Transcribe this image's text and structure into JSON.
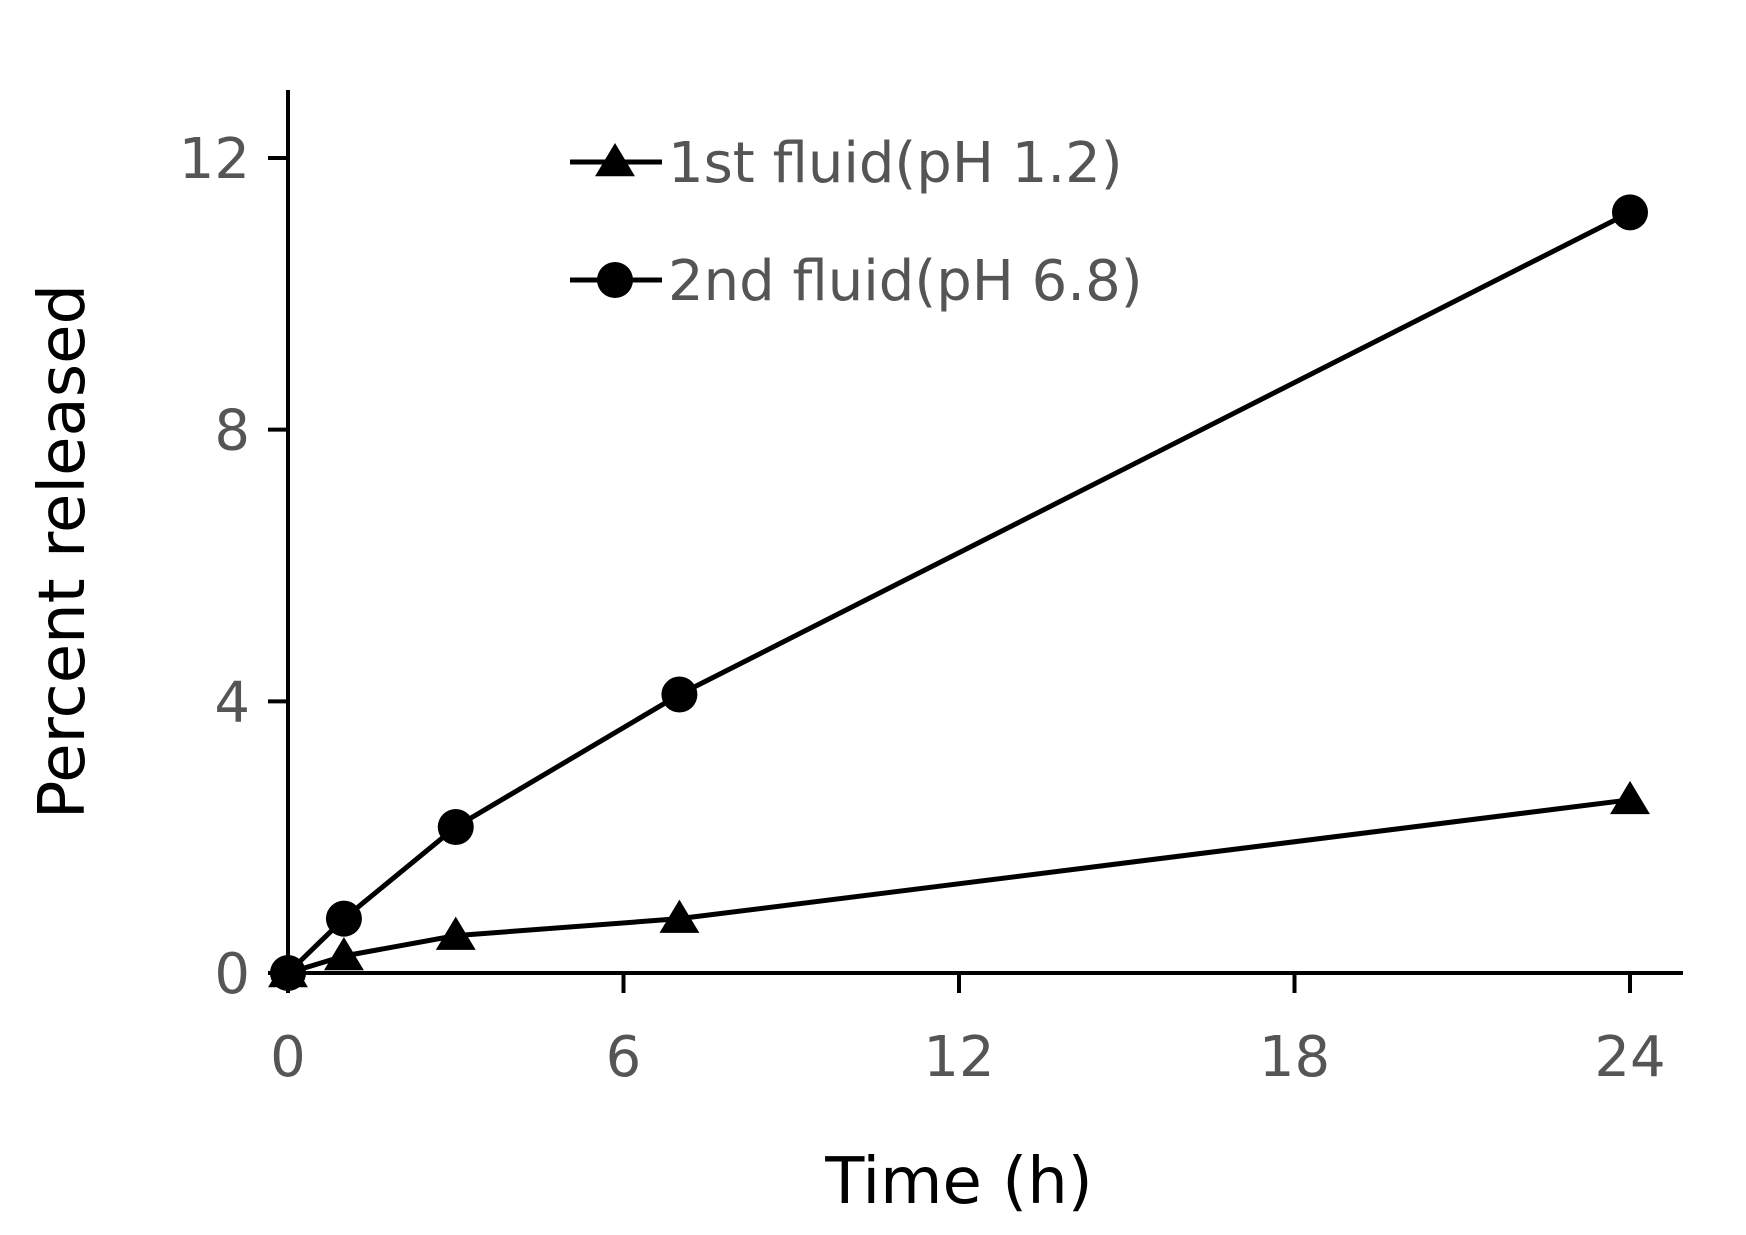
{
  "chart_data": {
    "type": "line",
    "title": "",
    "xlabel": "Time (h)",
    "ylabel": "Percent released",
    "xlim": [
      0,
      25
    ],
    "ylim": [
      0,
      13
    ],
    "xticks": [
      0,
      6,
      12,
      18,
      24
    ],
    "yticks": [
      0,
      4,
      8,
      12
    ],
    "grid": false,
    "legend_position": "top-left",
    "series": [
      {
        "name": "1st fluid(pH 1.2)",
        "marker": "triangle",
        "color": "#000000",
        "x": [
          0,
          1,
          3,
          7,
          24
        ],
        "y": [
          0,
          0.25,
          0.55,
          0.8,
          2.55
        ]
      },
      {
        "name": "2nd fluid(pH 6.8)",
        "marker": "circle",
        "color": "#000000",
        "x": [
          0,
          1,
          3,
          7,
          24
        ],
        "y": [
          0,
          0.8,
          2.15,
          4.1,
          11.2
        ]
      }
    ]
  }
}
